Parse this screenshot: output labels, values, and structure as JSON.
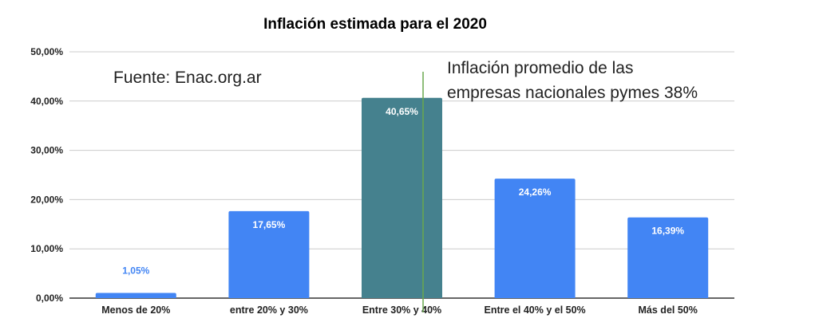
{
  "chart_data": {
    "type": "bar",
    "title": "Inflación estimada para el 2020",
    "xlabel": "",
    "ylabel": "",
    "categories": [
      "Menos de 20%",
      "entre 20% y 30%",
      "Entre 30% y 40%",
      "Entre el 40% y el 50%",
      "Más del 50%"
    ],
    "values": [
      1.05,
      17.65,
      40.65,
      24.26,
      16.39
    ],
    "data_labels": [
      "1,05%",
      "17,65%",
      "40,65%",
      "24,26%",
      "16,39%"
    ],
    "ylim": [
      0,
      50
    ],
    "yticks": [
      0,
      10,
      20,
      30,
      40,
      50
    ],
    "ytick_labels": [
      "0,00%",
      "10,00%",
      "20,00%",
      "30,00%",
      "40,00%",
      "50,00%"
    ],
    "grid": true,
    "legend": "none",
    "colors": {
      "bar": "#4285f4",
      "highlight_bar": "#45818e",
      "reference_line": "#6aa84f"
    },
    "highlight_index": 2,
    "annotations": {
      "source": "Fuente: Enac.org.ar",
      "reference_line_label": [
        "Inflación promedio de las",
        "empresas nacionales pymes 38%"
      ]
    }
  }
}
